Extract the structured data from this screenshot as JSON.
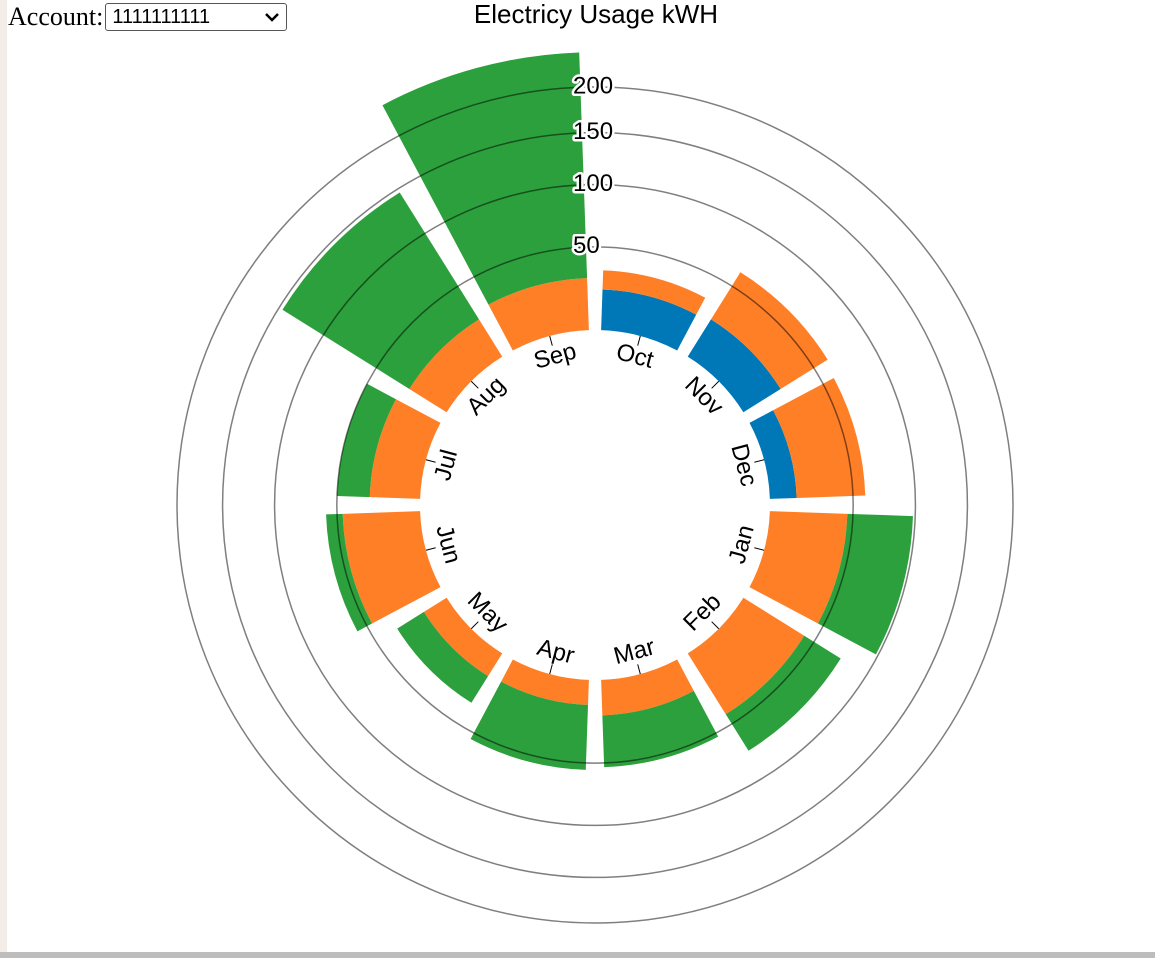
{
  "account": {
    "label": "Account:",
    "value": "1111111111"
  },
  "chart_data": {
    "type": "radial_bar",
    "title": "Electricy Usage kWH",
    "categories": [
      "Oct",
      "Nov",
      "Dec",
      "Jan",
      "Feb",
      "Mar",
      "Apr",
      "May",
      "Jun",
      "Jul",
      "Aug",
      "Sep"
    ],
    "series": [
      {
        "color": "#0077b6",
        "values": [
          22,
          24,
          14,
          0,
          0,
          0,
          0,
          0,
          0,
          0,
          0,
          0
        ]
      },
      {
        "color": "#ff7f27",
        "values": [
          12,
          38,
          45,
          46,
          42,
          19,
          13,
          14,
          46,
          28,
          24,
          29
        ]
      },
      {
        "color": "#2ca03c",
        "values": [
          0,
          0,
          0,
          52,
          32,
          34,
          42,
          19,
          12,
          22,
          122,
          213
        ]
      }
    ],
    "ylim": [
      0,
      200
    ],
    "yticks": [
      50,
      100,
      150,
      200
    ],
    "grid": true
  }
}
